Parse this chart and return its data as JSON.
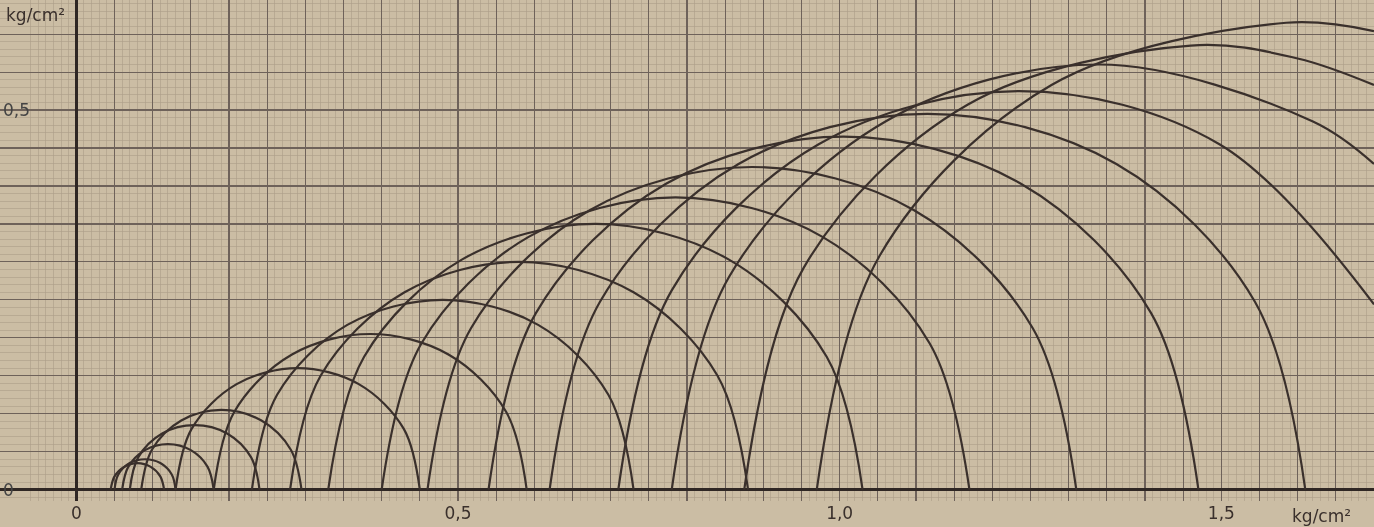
{
  "chart_data": {
    "type": "line",
    "xlabel": "kg/cm²",
    "ylabel": "kg/cm²",
    "xlim": [
      -0.1,
      1.7
    ],
    "ylim": [
      -0.015,
      0.645
    ],
    "xticks": [
      {
        "value": 0,
        "label": "0"
      },
      {
        "value": 0.05,
        "label": null
      },
      {
        "value": 0.1,
        "label": null
      },
      {
        "value": 0.15,
        "label": null
      },
      {
        "value": 0.2,
        "label": null
      },
      {
        "value": 0.25,
        "label": null
      },
      {
        "value": 0.3,
        "label": null
      },
      {
        "value": 0.35,
        "label": null
      },
      {
        "value": 0.4,
        "label": null
      },
      {
        "value": 0.45,
        "label": null
      },
      {
        "value": 0.5,
        "label": "0,5"
      },
      {
        "value": 0.55,
        "label": null
      },
      {
        "value": 0.6,
        "label": null
      },
      {
        "value": 0.65,
        "label": null
      },
      {
        "value": 0.7,
        "label": null
      },
      {
        "value": 0.75,
        "label": null
      },
      {
        "value": 0.8,
        "label": null
      },
      {
        "value": 0.85,
        "label": null
      },
      {
        "value": 0.9,
        "label": null
      },
      {
        "value": 0.95,
        "label": null
      },
      {
        "value": 1.0,
        "label": "1,0"
      },
      {
        "value": 1.05,
        "label": null
      },
      {
        "value": 1.1,
        "label": null
      },
      {
        "value": 1.15,
        "label": null
      },
      {
        "value": 1.2,
        "label": null
      },
      {
        "value": 1.25,
        "label": null
      },
      {
        "value": 1.3,
        "label": null
      },
      {
        "value": 1.35,
        "label": null
      },
      {
        "value": 1.4,
        "label": null
      },
      {
        "value": 1.45,
        "label": null
      },
      {
        "value": 1.5,
        "label": "1,5"
      },
      {
        "value": 1.55,
        "label": null
      },
      {
        "value": 1.6,
        "label": null
      },
      {
        "value": 1.65,
        "label": null
      }
    ],
    "yticks": [
      {
        "value": 0,
        "label": "0"
      },
      {
        "value": 0.05,
        "label": null
      },
      {
        "value": 0.1,
        "label": null
      },
      {
        "value": 0.15,
        "label": null
      },
      {
        "value": 0.2,
        "label": null
      },
      {
        "value": 0.25,
        "label": null
      },
      {
        "value": 0.3,
        "label": null
      },
      {
        "value": 0.35,
        "label": null
      },
      {
        "value": 0.4,
        "label": null
      },
      {
        "value": 0.45,
        "label": null
      },
      {
        "value": 0.5,
        "label": "0,5"
      },
      {
        "value": 0.55,
        "label": null
      },
      {
        "value": 0.6,
        "label": null
      }
    ],
    "grid": true,
    "marker": "none",
    "line_style": "solid",
    "series": [
      {
        "color": "#3a302c",
        "x": [
          0.045,
          0.05,
          0.0625,
          0.08,
          0.0975,
          0.11,
          0.115
        ],
        "values": [
          0,
          0.0175,
          0.03,
          0.035,
          0.03,
          0.0175,
          0
        ]
      },
      {
        "color": "#3a302c",
        "x": [
          0.05,
          0.055,
          0.07,
          0.09,
          0.11,
          0.125,
          0.13
        ],
        "values": [
          0,
          0.02,
          0.035,
          0.04,
          0.035,
          0.02,
          0
        ]
      },
      {
        "color": "#3a302c",
        "x": [
          0.06,
          0.068,
          0.09,
          0.12,
          0.15,
          0.172,
          0.18
        ],
        "values": [
          0,
          0.03,
          0.052,
          0.06,
          0.052,
          0.03,
          0
        ]
      },
      {
        "color": "#3a302c",
        "x": [
          0.07,
          0.081,
          0.1125,
          0.155,
          0.1975,
          0.229,
          0.24
        ],
        "values": [
          0,
          0.0425,
          0.074,
          0.085,
          0.074,
          0.0425,
          0
        ]
      },
      {
        "color": "#3a302c",
        "x": [
          0.085,
          0.099,
          0.1375,
          0.19,
          0.2425,
          0.281,
          0.295
        ],
        "values": [
          0,
          0.0525,
          0.091,
          0.105,
          0.091,
          0.0525,
          0
        ]
      },
      {
        "color": "#3a302c",
        "x": [
          0.13,
          0.151,
          0.21,
          0.29,
          0.37,
          0.429,
          0.45
        ],
        "values": [
          0,
          0.08,
          0.139,
          0.16,
          0.139,
          0.08,
          0
        ]
      },
      {
        "color": "#3a302c",
        "x": [
          0.18,
          0.207,
          0.2825,
          0.385,
          0.4875,
          0.563,
          0.59
        ],
        "values": [
          0,
          0.1025,
          0.178,
          0.205,
          0.178,
          0.1025,
          0
        ]
      },
      {
        "color": "#3a302c",
        "x": [
          0.23,
          0.263,
          0.355,
          0.48,
          0.605,
          0.697,
          0.73
        ],
        "values": [
          0,
          0.125,
          0.217,
          0.25,
          0.217,
          0.125,
          0
        ]
      },
      {
        "color": "#3a302c",
        "x": [
          0.28,
          0.32,
          0.43,
          0.58,
          0.73,
          0.84,
          0.88
        ],
        "values": [
          0,
          0.15,
          0.26,
          0.3,
          0.26,
          0.15,
          0
        ]
      },
      {
        "color": "#3a302c",
        "x": [
          0.33,
          0.377,
          0.505,
          0.68,
          0.855,
          0.983,
          1.03
        ],
        "values": [
          0,
          0.175,
          0.303,
          0.35,
          0.303,
          0.175,
          0
        ]
      },
      {
        "color": "#3a302c",
        "x": [
          0.4,
          0.452,
          0.5925,
          0.785,
          0.9775,
          1.118,
          1.17
        ],
        "values": [
          0,
          0.1925,
          0.333,
          0.385,
          0.333,
          0.1925,
          0
        ]
      },
      {
        "color": "#3a302c",
        "x": [
          0.46,
          0.517,
          0.6725,
          0.885,
          1.0975,
          1.253,
          1.31
        ],
        "values": [
          0,
          0.2125,
          0.368,
          0.425,
          0.368,
          0.2125,
          0
        ]
      },
      {
        "color": "#3a302c",
        "x": [
          0.54,
          0.602,
          0.7725,
          1.005,
          1.2375,
          1.408,
          1.47
        ],
        "values": [
          0,
          0.2325,
          0.403,
          0.465,
          0.403,
          0.2325,
          0
        ]
      },
      {
        "color": "#3a302c",
        "x": [
          0.62,
          0.686,
          0.8675,
          1.115,
          1.3625,
          1.544,
          1.61
        ],
        "values": [
          0,
          0.2475,
          0.429,
          0.495,
          0.429,
          0.2475,
          0
        ]
      },
      {
        "color": "#3a302c",
        "x": [
          0.71,
          0.78,
          0.9725,
          1.235,
          1.4975,
          1.7
        ],
        "values": [
          0,
          0.2625,
          0.455,
          0.525,
          0.455,
          0.244
        ]
      },
      {
        "color": "#3a302c",
        "x": [
          0.78,
          0.855,
          1.06,
          1.34,
          1.62,
          1.7
        ],
        "values": [
          0,
          0.28,
          0.485,
          0.56,
          0.485,
          0.429
        ]
      },
      {
        "color": "#3a302c",
        "x": [
          0.875,
          0.953,
          1.1675,
          1.46,
          1.6,
          1.7
        ],
        "values": [
          0,
          0.2925,
          0.507,
          0.585,
          0.568,
          0.533
        ]
      },
      {
        "color": "#3a302c",
        "x": [
          0.97,
          1.052,
          1.2775,
          1.585,
          1.7
        ],
        "values": [
          0,
          0.3075,
          0.533,
          0.615,
          0.604
        ]
      }
    ]
  }
}
